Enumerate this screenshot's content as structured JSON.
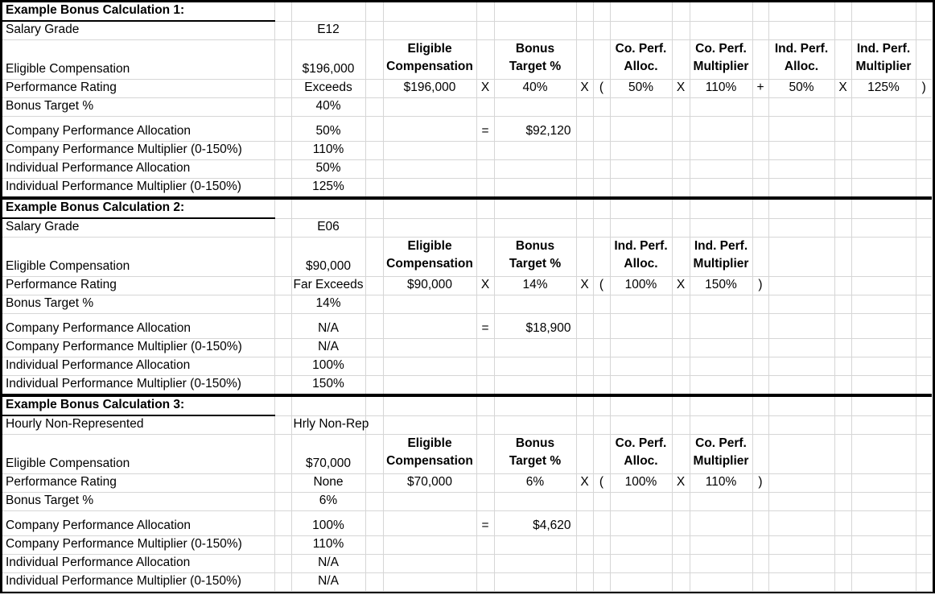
{
  "sheet": {
    "colors": {
      "grid_line": "#d6d6d6",
      "section_border": "#000000",
      "text": "#000000",
      "background": "#ffffff"
    },
    "sections": [
      {
        "rows": [
          {
            "cells": [
              {
                "c": 0,
                "t": "Example Bonus Calculation 1:",
                "b": 1,
                "bb": 1,
                "n": "section-title"
              }
            ]
          },
          {
            "cells": [
              {
                "c": 0,
                "t": "Salary Grade",
                "n": "row-label"
              },
              {
                "c": 2,
                "t": "E12",
                "n": "row-value"
              }
            ]
          },
          {
            "cells": [
              {
                "c": 0,
                "t": "Eligible Compensation",
                "n": "row-label"
              },
              {
                "c": 2,
                "t": "$196,000",
                "n": "row-value"
              },
              {
                "c": 4,
                "t": "Eligible\nCompensation",
                "b": 1,
                "n": "formula-header"
              },
              {
                "c": 6,
                "t": "Bonus\nTarget %",
                "b": 1,
                "n": "formula-header"
              },
              {
                "c": 9,
                "t": "Co. Perf.\nAlloc.",
                "b": 1,
                "n": "formula-header"
              },
              {
                "c": 11,
                "t": "Co. Perf.\nMultiplier",
                "b": 1,
                "n": "formula-header"
              },
              {
                "c": 13,
                "t": "Ind. Perf.\nAlloc.",
                "b": 1,
                "n": "formula-header"
              },
              {
                "c": 15,
                "t": "Ind. Perf.\nMultiplier",
                "b": 1,
                "n": "formula-header"
              }
            ]
          },
          {
            "cells": [
              {
                "c": 0,
                "t": "Performance Rating",
                "n": "row-label"
              },
              {
                "c": 2,
                "t": "Exceeds",
                "n": "row-value"
              },
              {
                "c": 4,
                "t": "$196,000",
                "n": "formula-value"
              },
              {
                "c": 5,
                "t": "X",
                "n": "operator-cell"
              },
              {
                "c": 6,
                "t": "40%",
                "n": "formula-value"
              },
              {
                "c": 7,
                "t": "X",
                "n": "operator-cell"
              },
              {
                "c": 8,
                "t": "(",
                "n": "operator-cell"
              },
              {
                "c": 9,
                "t": "50%",
                "n": "formula-value"
              },
              {
                "c": 10,
                "t": "X",
                "n": "operator-cell"
              },
              {
                "c": 11,
                "t": "110%",
                "n": "formula-value"
              },
              {
                "c": 12,
                "t": "+",
                "n": "operator-cell"
              },
              {
                "c": 13,
                "t": "50%",
                "n": "formula-value"
              },
              {
                "c": 14,
                "t": "X",
                "n": "operator-cell"
              },
              {
                "c": 15,
                "t": "125%",
                "n": "formula-value"
              },
              {
                "c": 16,
                "t": ")",
                "n": "operator-cell"
              }
            ]
          },
          {
            "cells": [
              {
                "c": 0,
                "t": "Bonus Target %",
                "n": "row-label"
              },
              {
                "c": 2,
                "t": "40%",
                "n": "row-value"
              }
            ]
          },
          {
            "cells": [
              {
                "c": 0,
                "t": "Company Performance Allocation",
                "n": "row-label"
              },
              {
                "c": 2,
                "t": "50%",
                "n": "row-value"
              },
              {
                "c": 5,
                "t": "=",
                "n": "operator-cell"
              },
              {
                "c": 6,
                "t": "$92,120",
                "a": "r",
                "n": "formula-result"
              }
            ]
          },
          {
            "cells": [
              {
                "c": 0,
                "t": "Company Performance Multiplier (0-150%)",
                "n": "row-label"
              },
              {
                "c": 2,
                "t": "110%",
                "n": "row-value"
              }
            ]
          },
          {
            "cells": [
              {
                "c": 0,
                "t": "Individual Performance Allocation",
                "n": "row-label"
              },
              {
                "c": 2,
                "t": "50%",
                "n": "row-value"
              }
            ]
          },
          {
            "cells": [
              {
                "c": 0,
                "t": "Individual Performance Multiplier (0-150%)",
                "n": "row-label"
              },
              {
                "c": 2,
                "t": "125%",
                "n": "row-value"
              }
            ]
          }
        ]
      },
      {
        "rows": [
          {
            "cells": [
              {
                "c": 0,
                "t": "Example Bonus Calculation 2:",
                "b": 1,
                "bb": 1,
                "n": "section-title"
              }
            ]
          },
          {
            "cells": [
              {
                "c": 0,
                "t": "Salary Grade",
                "n": "row-label"
              },
              {
                "c": 2,
                "t": "E06",
                "n": "row-value"
              }
            ]
          },
          {
            "cells": [
              {
                "c": 0,
                "t": "Eligible Compensation",
                "n": "row-label"
              },
              {
                "c": 2,
                "t": "$90,000",
                "n": "row-value"
              },
              {
                "c": 4,
                "t": "Eligible\nCompensation",
                "b": 1,
                "n": "formula-header"
              },
              {
                "c": 6,
                "t": "Bonus\nTarget %",
                "b": 1,
                "n": "formula-header"
              },
              {
                "c": 9,
                "t": "Ind. Perf.\nAlloc.",
                "b": 1,
                "n": "formula-header"
              },
              {
                "c": 11,
                "t": "Ind. Perf.\nMultiplier",
                "b": 1,
                "n": "formula-header"
              }
            ]
          },
          {
            "cells": [
              {
                "c": 0,
                "t": "Performance Rating",
                "n": "row-label"
              },
              {
                "c": 2,
                "t": "Far Exceeds",
                "n": "row-value"
              },
              {
                "c": 4,
                "t": "$90,000",
                "n": "formula-value"
              },
              {
                "c": 5,
                "t": "X",
                "n": "operator-cell"
              },
              {
                "c": 6,
                "t": "14%",
                "n": "formula-value"
              },
              {
                "c": 7,
                "t": "X",
                "n": "operator-cell"
              },
              {
                "c": 8,
                "t": "(",
                "n": "operator-cell"
              },
              {
                "c": 9,
                "t": "100%",
                "n": "formula-value"
              },
              {
                "c": 10,
                "t": "X",
                "n": "operator-cell"
              },
              {
                "c": 11,
                "t": "150%",
                "n": "formula-value"
              },
              {
                "c": 12,
                "t": ")",
                "n": "operator-cell"
              }
            ]
          },
          {
            "cells": [
              {
                "c": 0,
                "t": "Bonus Target %",
                "n": "row-label"
              },
              {
                "c": 2,
                "t": "14%",
                "n": "row-value"
              }
            ]
          },
          {
            "cells": [
              {
                "c": 0,
                "t": "Company Performance Allocation",
                "n": "row-label"
              },
              {
                "c": 2,
                "t": "N/A",
                "n": "row-value"
              },
              {
                "c": 5,
                "t": "=",
                "n": "operator-cell"
              },
              {
                "c": 6,
                "t": "$18,900",
                "a": "r",
                "n": "formula-result"
              }
            ]
          },
          {
            "cells": [
              {
                "c": 0,
                "t": "Company Performance Multiplier (0-150%)",
                "n": "row-label"
              },
              {
                "c": 2,
                "t": "N/A",
                "n": "row-value"
              }
            ]
          },
          {
            "cells": [
              {
                "c": 0,
                "t": "Individual Performance Allocation",
                "n": "row-label"
              },
              {
                "c": 2,
                "t": "100%",
                "n": "row-value"
              }
            ]
          },
          {
            "cells": [
              {
                "c": 0,
                "t": "Individual Performance Multiplier (0-150%)",
                "n": "row-label"
              },
              {
                "c": 2,
                "t": "150%",
                "n": "row-value"
              }
            ]
          }
        ]
      },
      {
        "rows": [
          {
            "cells": [
              {
                "c": 0,
                "t": "Example Bonus Calculation 3:",
                "b": 1,
                "bb": 1,
                "n": "section-title"
              }
            ]
          },
          {
            "cells": [
              {
                "c": 0,
                "t": "Hourly Non-Represented",
                "n": "row-label"
              },
              {
                "c": 2,
                "t": "Hrly Non-Rep",
                "n": "row-value"
              }
            ]
          },
          {
            "cells": [
              {
                "c": 0,
                "t": "Eligible Compensation",
                "n": "row-label"
              },
              {
                "c": 2,
                "t": "$70,000",
                "n": "row-value"
              },
              {
                "c": 4,
                "t": "Eligible\nCompensation",
                "b": 1,
                "n": "formula-header"
              },
              {
                "c": 6,
                "t": "Bonus\nTarget %",
                "b": 1,
                "n": "formula-header"
              },
              {
                "c": 9,
                "t": "Co. Perf.\nAlloc.",
                "b": 1,
                "n": "formula-header"
              },
              {
                "c": 11,
                "t": "Co. Perf.\nMultiplier",
                "b": 1,
                "n": "formula-header"
              }
            ]
          },
          {
            "cells": [
              {
                "c": 0,
                "t": "Performance Rating",
                "n": "row-label"
              },
              {
                "c": 2,
                "t": "None",
                "n": "row-value"
              },
              {
                "c": 4,
                "t": "$70,000",
                "n": "formula-value"
              },
              {
                "c": 6,
                "t": "6%",
                "n": "formula-value"
              },
              {
                "c": 7,
                "t": "X",
                "n": "operator-cell"
              },
              {
                "c": 8,
                "t": "(",
                "n": "operator-cell"
              },
              {
                "c": 9,
                "t": "100%",
                "n": "formula-value"
              },
              {
                "c": 10,
                "t": "X",
                "n": "operator-cell"
              },
              {
                "c": 11,
                "t": "110%",
                "n": "formula-value"
              },
              {
                "c": 12,
                "t": ")",
                "n": "operator-cell"
              }
            ]
          },
          {
            "cells": [
              {
                "c": 0,
                "t": "Bonus Target %",
                "n": "row-label"
              },
              {
                "c": 2,
                "t": "6%",
                "n": "row-value"
              }
            ]
          },
          {
            "cells": [
              {
                "c": 0,
                "t": "Company Performance Allocation",
                "n": "row-label"
              },
              {
                "c": 2,
                "t": "100%",
                "n": "row-value"
              },
              {
                "c": 5,
                "t": "=",
                "n": "operator-cell"
              },
              {
                "c": 6,
                "t": "$4,620",
                "a": "r",
                "n": "formula-result"
              }
            ]
          },
          {
            "cells": [
              {
                "c": 0,
                "t": "Company Performance Multiplier (0-150%)",
                "n": "row-label"
              },
              {
                "c": 2,
                "t": "110%",
                "n": "row-value"
              }
            ]
          },
          {
            "cells": [
              {
                "c": 0,
                "t": "Individual Performance Allocation",
                "n": "row-label"
              },
              {
                "c": 2,
                "t": "N/A",
                "n": "row-value"
              }
            ]
          },
          {
            "cells": [
              {
                "c": 0,
                "t": "Individual Performance Multiplier (0-150%)",
                "n": "row-label"
              },
              {
                "c": 2,
                "t": "N/A",
                "n": "row-value"
              }
            ]
          }
        ]
      }
    ]
  }
}
